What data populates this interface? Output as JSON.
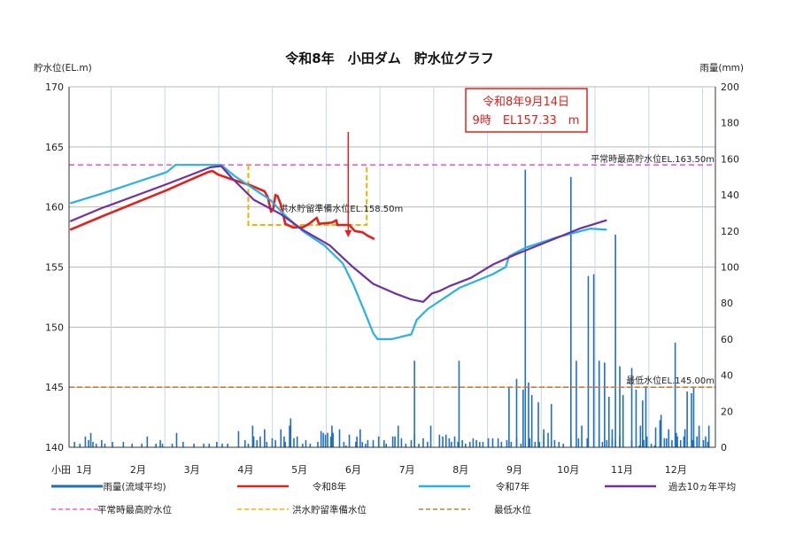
{
  "chart_data": {
    "type": "line",
    "title": "令和8年　小田ダム　貯水位グラフ",
    "left_axis": {
      "label": "貯水位(EL.m)",
      "ylim": [
        140,
        170
      ],
      "ticks": [
        140,
        145,
        150,
        155,
        160,
        165,
        170
      ]
    },
    "right_axis": {
      "label": "雨量(mm)",
      "ylim": [
        0,
        200
      ],
      "ticks": [
        0,
        20,
        40,
        60,
        80,
        100,
        120,
        140,
        160,
        180,
        200
      ]
    },
    "x_axis": {
      "prefix": "小田",
      "months": [
        "1月",
        "2月",
        "3月",
        "4月",
        "5月",
        "6月",
        "7月",
        "8月",
        "9月",
        "10月",
        "11月",
        "12月"
      ]
    },
    "grid": true,
    "legend_position": "bottom",
    "colors": {
      "rain": "#1f6fbe",
      "r8": "#e3211c",
      "r7": "#29b0e6",
      "avg10": "#7030a0",
      "normal_max": "#ee5fd0",
      "flood_prep": "#f0b400",
      "min_level": "#c08040"
    },
    "legend": [
      {
        "key": "rain",
        "label": "雨量(流域平均)"
      },
      {
        "key": "r8",
        "label": "令和8年"
      },
      {
        "key": "r7",
        "label": "令和7年"
      },
      {
        "key": "avg10",
        "label": "過去10ヵ年平均"
      },
      {
        "key": "normal_max",
        "label": "平常時最高貯水位"
      },
      {
        "key": "flood_prep",
        "label": "洪水貯留準備水位"
      },
      {
        "key": "min_level",
        "label": "最低水位"
      }
    ],
    "reference_lines": {
      "normal_max": {
        "value": 163.5,
        "label": "平常時最高貯水位EL.163.50m"
      },
      "flood_prep": {
        "value": 158.5,
        "label": "洪水貯留準備水位EL.158.50m",
        "period_start_day": 165,
        "period_end_day": 274,
        "upper_value": 163.5
      },
      "min_level": {
        "value": 145.0,
        "label": "最低水位EL.145.00m"
      }
    },
    "callout": {
      "line1": "令和8年9月14日",
      "line2": "9時　EL157.33　m",
      "day": 257,
      "value": 157.33
    },
    "series": [
      {
        "name": "令和8年",
        "key": "r8",
        "points": [
          [
            1,
            158.1
          ],
          [
            30,
            159.2
          ],
          [
            60,
            160.3
          ],
          [
            90,
            161.4
          ],
          [
            110,
            162.2
          ],
          [
            128,
            162.9
          ],
          [
            132,
            163.0
          ],
          [
            137,
            162.7
          ],
          [
            150,
            162.3
          ],
          [
            160,
            162.0
          ],
          [
            167,
            161.8
          ],
          [
            180,
            161.3
          ],
          [
            183,
            160.8
          ],
          [
            186,
            159.6
          ],
          [
            188,
            159.9
          ],
          [
            190,
            161.0
          ],
          [
            192,
            160.9
          ],
          [
            195,
            160.2
          ],
          [
            199,
            158.6
          ],
          [
            206,
            158.3
          ],
          [
            215,
            158.3
          ],
          [
            221,
            158.6
          ],
          [
            228,
            159.1
          ],
          [
            230,
            158.6
          ],
          [
            242,
            158.7
          ],
          [
            246,
            158.9
          ],
          [
            247,
            158.5
          ],
          [
            258,
            158.5
          ],
          [
            263,
            158.0
          ],
          [
            270,
            157.9
          ],
          [
            275,
            157.6
          ],
          [
            281,
            157.33
          ]
        ]
      },
      {
        "name": "令和7年",
        "key": "r7",
        "points": [
          [
            1,
            160.3
          ],
          [
            30,
            161.1
          ],
          [
            60,
            162.0
          ],
          [
            90,
            162.9
          ],
          [
            98,
            163.5
          ],
          [
            140,
            163.5
          ],
          [
            152,
            162.6
          ],
          [
            170,
            161.5
          ],
          [
            185,
            160.6
          ],
          [
            200,
            159.2
          ],
          [
            215,
            158.0
          ],
          [
            235,
            156.8
          ],
          [
            252,
            155.3
          ],
          [
            262,
            153.5
          ],
          [
            272,
            151.3
          ],
          [
            280,
            149.5
          ],
          [
            284,
            149.0
          ],
          [
            297,
            149.0
          ],
          [
            306,
            149.2
          ],
          [
            315,
            149.4
          ],
          [
            320,
            150.6
          ],
          [
            330,
            151.5
          ],
          [
            360,
            153.3
          ],
          [
            390,
            154.4
          ],
          [
            402,
            155.0
          ],
          [
            405,
            155.9
          ],
          [
            420,
            156.6
          ],
          [
            450,
            157.5
          ],
          [
            480,
            158.2
          ],
          [
            495,
            158.1
          ]
        ]
      },
      {
        "name": "過去10ヵ年平均",
        "key": "avg10",
        "points": [
          [
            1,
            158.8
          ],
          [
            30,
            159.9
          ],
          [
            60,
            160.9
          ],
          [
            90,
            161.9
          ],
          [
            113,
            162.7
          ],
          [
            130,
            163.3
          ],
          [
            140,
            163.4
          ],
          [
            150,
            162.4
          ],
          [
            170,
            160.6
          ],
          [
            195,
            159.4
          ],
          [
            215,
            158.1
          ],
          [
            240,
            156.8
          ],
          [
            260,
            155.1
          ],
          [
            280,
            153.6
          ],
          [
            300,
            152.8
          ],
          [
            315,
            152.3
          ],
          [
            326,
            152.1
          ],
          [
            334,
            152.8
          ],
          [
            341,
            153.0
          ],
          [
            350,
            153.4
          ],
          [
            370,
            154.1
          ],
          [
            390,
            155.2
          ],
          [
            410,
            156.0
          ],
          [
            440,
            157.1
          ],
          [
            470,
            158.2
          ],
          [
            495,
            158.9
          ]
        ]
      }
    ],
    "rainfall": {
      "name": "雨量(流域平均)",
      "bars": [
        [
          5,
          3
        ],
        [
          10,
          2
        ],
        [
          15,
          6
        ],
        [
          18,
          4
        ],
        [
          20,
          8
        ],
        [
          22,
          3
        ],
        [
          25,
          2
        ],
        [
          30,
          4
        ],
        [
          33,
          2
        ],
        [
          40,
          3
        ],
        [
          50,
          3
        ],
        [
          58,
          2
        ],
        [
          67,
          2
        ],
        [
          72,
          6
        ],
        [
          80,
          2
        ],
        [
          84,
          4
        ],
        [
          86,
          2
        ],
        [
          95,
          2
        ],
        [
          99,
          8
        ],
        [
          105,
          3
        ],
        [
          115,
          2
        ],
        [
          124,
          2
        ],
        [
          129,
          2
        ],
        [
          136,
          3
        ],
        [
          141,
          2
        ],
        [
          146,
          2
        ],
        [
          156,
          9
        ],
        [
          162,
          4
        ],
        [
          165,
          2
        ],
        [
          169,
          12
        ],
        [
          170,
          6
        ],
        [
          173,
          4
        ],
        [
          176,
          6
        ],
        [
          180,
          10
        ],
        [
          182,
          3
        ],
        [
          187,
          5
        ],
        [
          190,
          4
        ],
        [
          195,
          10
        ],
        [
          198,
          6
        ],
        [
          199,
          3
        ],
        [
          203,
          12
        ],
        [
          204,
          16
        ],
        [
          207,
          5
        ],
        [
          210,
          6
        ],
        [
          215,
          2
        ],
        [
          218,
          4
        ],
        [
          222,
          2
        ],
        [
          229,
          3
        ],
        [
          232,
          9
        ],
        [
          234,
          8
        ],
        [
          236,
          7
        ],
        [
          238,
          8
        ],
        [
          241,
          6
        ],
        [
          242,
          12
        ],
        [
          243,
          8
        ],
        [
          249,
          10
        ],
        [
          253,
          3
        ],
        [
          255,
          1
        ],
        [
          258,
          7
        ],
        [
          264,
          3
        ],
        [
          265,
          6
        ],
        [
          268,
          10
        ],
        [
          270,
          3
        ],
        [
          273,
          2
        ],
        [
          275,
          4
        ],
        [
          280,
          4
        ],
        [
          285,
          6
        ],
        [
          290,
          4
        ],
        [
          292,
          2
        ],
        [
          298,
          6
        ],
        [
          300,
          6
        ],
        [
          303,
          12
        ],
        [
          306,
          5
        ],
        [
          310,
          2
        ],
        [
          315,
          4
        ],
        [
          318,
          7
        ],
        [
          322,
          2
        ],
        [
          326,
          5
        ],
        [
          330,
          3
        ],
        [
          333,
          12
        ],
        [
          341,
          7
        ],
        [
          344,
          6
        ],
        [
          347,
          7
        ],
        [
          350,
          5
        ],
        [
          352,
          3
        ],
        [
          355,
          6
        ],
        [
          358,
          3
        ],
        [
          362,
          4
        ],
        [
          365,
          2
        ],
        [
          369,
          3
        ],
        [
          372,
          5
        ],
        [
          375,
          4
        ],
        [
          378,
          3
        ],
        [
          381,
          3
        ],
        [
          386,
          5
        ],
        [
          390,
          5
        ],
        [
          395,
          5
        ],
        [
          398,
          3
        ],
        [
          403,
          4
        ],
        [
          407,
          3
        ],
        [
          412,
          5
        ],
        [
          416,
          2
        ],
        [
          420,
          3
        ],
        [
          424,
          5
        ],
        [
          429,
          3
        ],
        [
          433,
          3
        ],
        [
          437,
          7
        ],
        [
          441,
          8
        ],
        [
          444,
          3
        ],
        [
          447,
          4
        ],
        [
          451,
          3
        ],
        [
          455,
          2
        ],
        [
          462,
          6
        ],
        [
          469,
          5
        ],
        [
          477,
          5
        ],
        [
          488,
          6
        ],
        [
          491,
          3
        ],
        [
          495,
          4
        ],
        [
          500,
          5
        ],
        [
          503,
          4
        ],
        [
          507,
          6
        ],
        [
          518,
          4
        ],
        [
          525,
          1
        ],
        [
          526,
          12
        ],
        [
          529,
          4
        ],
        [
          532,
          6
        ],
        [
          536,
          2
        ],
        [
          539,
          1
        ],
        [
          540,
          11
        ],
        [
          544,
          15
        ],
        [
          548,
          5
        ],
        [
          552,
          10
        ],
        [
          555,
          4
        ],
        [
          559,
          8
        ],
        [
          560,
          6
        ],
        [
          563,
          4
        ],
        [
          567,
          10
        ],
        [
          574,
          4
        ],
        [
          575,
          3
        ],
        [
          578,
          6
        ],
        [
          580,
          7
        ],
        [
          584,
          4
        ],
        [
          588,
          3
        ]
      ],
      "tall": [
        [
          318,
          48
        ],
        [
          359,
          48
        ],
        [
          405,
          33
        ],
        [
          412,
          38
        ],
        [
          418,
          32
        ],
        [
          420,
          154
        ],
        [
          423,
          36
        ],
        [
          426,
          29
        ],
        [
          432,
          25
        ],
        [
          437,
          10
        ],
        [
          444,
          24
        ],
        [
          462,
          150
        ],
        [
          467,
          48
        ],
        [
          472,
          12
        ],
        [
          478,
          95
        ],
        [
          483,
          96
        ],
        [
          488,
          48
        ],
        [
          493,
          47
        ],
        [
          497,
          28
        ],
        [
          500,
          10
        ],
        [
          503,
          118
        ],
        [
          507,
          45
        ],
        [
          510,
          29
        ],
        [
          518,
          44
        ],
        [
          522,
          32
        ],
        [
          528,
          26
        ],
        [
          531,
          34
        ],
        [
          545,
          18
        ],
        [
          550,
          5
        ],
        [
          558,
          58
        ],
        [
          566,
          6
        ],
        [
          569,
          31
        ],
        [
          573,
          30
        ],
        [
          575,
          33
        ],
        [
          580,
          12
        ],
        [
          586,
          6
        ],
        [
          589,
          12
        ]
      ]
    }
  }
}
